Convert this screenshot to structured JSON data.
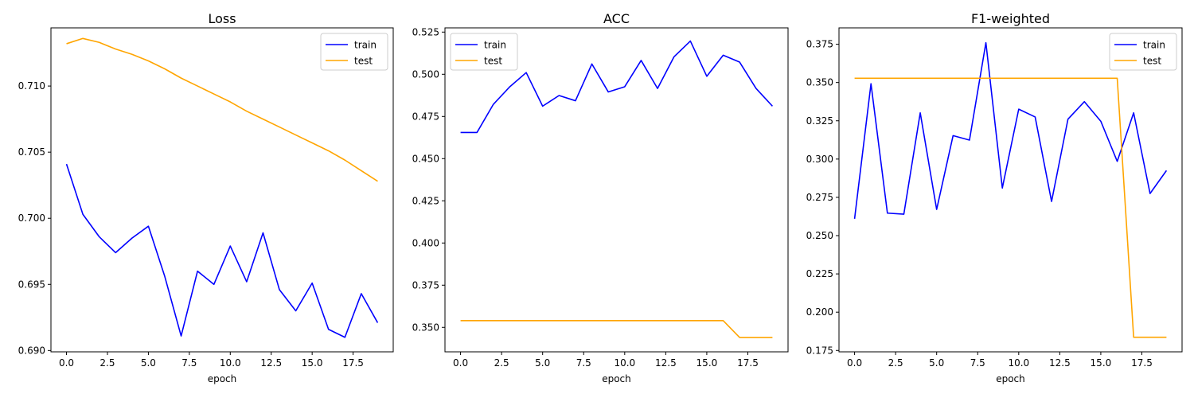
{
  "figure": {
    "background": "#ffffff"
  },
  "chart_data": [
    {
      "type": "line",
      "title": "Loss",
      "xlabel": "epoch",
      "ylabel": "",
      "x": [
        0,
        1,
        2,
        3,
        4,
        5,
        6,
        7,
        8,
        9,
        10,
        11,
        12,
        13,
        14,
        15,
        16,
        17,
        18,
        19
      ],
      "xlim": [
        -0.95,
        19.95
      ],
      "ylim": [
        0.6899,
        0.7144
      ],
      "xticks": [
        "0.0",
        "2.5",
        "5.0",
        "7.5",
        "10.0",
        "12.5",
        "15.0",
        "17.5"
      ],
      "xtick_values": [
        0,
        2.5,
        5,
        7.5,
        10,
        12.5,
        15,
        17.5
      ],
      "yticks": [
        "0.690",
        "0.695",
        "0.700",
        "0.705",
        "0.710"
      ],
      "ytick_values": [
        0.69,
        0.695,
        0.7,
        0.705,
        0.71
      ],
      "grid": false,
      "legend": "top-right",
      "series": [
        {
          "name": "train",
          "color": "#0000ff",
          "values": [
            0.7041,
            0.7003,
            0.6986,
            0.6974,
            0.6985,
            0.6994,
            0.6956,
            0.6911,
            0.696,
            0.695,
            0.6979,
            0.6952,
            0.6989,
            0.6946,
            0.693,
            0.6951,
            0.6916,
            0.691,
            0.6943,
            0.6921
          ]
        },
        {
          "name": "test",
          "color": "#ffa500",
          "values": [
            0.7132,
            0.7136,
            0.7133,
            0.7128,
            0.7124,
            0.7119,
            0.7113,
            0.7106,
            0.71,
            0.7094,
            0.7088,
            0.7081,
            0.7075,
            0.7069,
            0.7063,
            0.7057,
            0.7051,
            0.7044,
            0.7036,
            0.7028
          ]
        }
      ]
    },
    {
      "type": "line",
      "title": "ACC",
      "xlabel": "epoch",
      "ylabel": "",
      "x": [
        0,
        1,
        2,
        3,
        4,
        5,
        6,
        7,
        8,
        9,
        10,
        11,
        12,
        13,
        14,
        15,
        16,
        17,
        18,
        19
      ],
      "xlim": [
        -0.95,
        19.95
      ],
      "ylim": [
        0.3355,
        0.5275
      ],
      "xticks": [
        "0.0",
        "2.5",
        "5.0",
        "7.5",
        "10.0",
        "12.5",
        "15.0",
        "17.5"
      ],
      "xtick_values": [
        0,
        2.5,
        5,
        7.5,
        10,
        12.5,
        15,
        17.5
      ],
      "yticks": [
        "0.350",
        "0.375",
        "0.400",
        "0.425",
        "0.450",
        "0.475",
        "0.500",
        "0.525"
      ],
      "ytick_values": [
        0.35,
        0.375,
        0.4,
        0.425,
        0.45,
        0.475,
        0.5,
        0.525
      ],
      "grid": false,
      "legend": "top-left",
      "series": [
        {
          "name": "train",
          "color": "#0000ff",
          "values": [
            0.4655,
            0.4655,
            0.4822,
            0.4926,
            0.501,
            0.4811,
            0.4874,
            0.4843,
            0.5061,
            0.4895,
            0.4926,
            0.5082,
            0.4916,
            0.5103,
            0.5197,
            0.4988,
            0.5113,
            0.5072,
            0.4916,
            0.4811
          ]
        },
        {
          "name": "test",
          "color": "#ffa500",
          "values": [
            0.354,
            0.354,
            0.354,
            0.354,
            0.354,
            0.354,
            0.354,
            0.354,
            0.354,
            0.354,
            0.354,
            0.354,
            0.354,
            0.354,
            0.354,
            0.354,
            0.354,
            0.344,
            0.344,
            0.344
          ]
        }
      ]
    },
    {
      "type": "line",
      "title": "F1-weighted",
      "xlabel": "epoch",
      "ylabel": "",
      "x": [
        0,
        1,
        2,
        3,
        4,
        5,
        6,
        7,
        8,
        9,
        10,
        11,
        12,
        13,
        14,
        15,
        16,
        17,
        18,
        19
      ],
      "xlim": [
        -0.95,
        19.95
      ],
      "ylim": [
        0.1741,
        0.3857
      ],
      "xticks": [
        "0.0",
        "2.5",
        "5.0",
        "7.5",
        "10.0",
        "12.5",
        "15.0",
        "17.5"
      ],
      "xtick_values": [
        0,
        2.5,
        5,
        7.5,
        10,
        12.5,
        15,
        17.5
      ],
      "yticks": [
        "0.175",
        "0.200",
        "0.225",
        "0.250",
        "0.275",
        "0.300",
        "0.325",
        "0.350",
        "0.375"
      ],
      "ytick_values": [
        0.175,
        0.2,
        0.225,
        0.25,
        0.275,
        0.3,
        0.325,
        0.35,
        0.375
      ],
      "grid": false,
      "legend": "top-right",
      "series": [
        {
          "name": "train",
          "color": "#0000ff",
          "values": [
            0.261,
            0.3492,
            0.2647,
            0.264,
            0.3302,
            0.2671,
            0.3153,
            0.3124,
            0.376,
            0.2811,
            0.3326,
            0.3275,
            0.2723,
            0.3261,
            0.3375,
            0.3247,
            0.2985,
            0.3302,
            0.2775,
            0.2925
          ]
        },
        {
          "name": "test",
          "color": "#ffa500",
          "values": [
            0.3528,
            0.3528,
            0.3528,
            0.3528,
            0.3528,
            0.3528,
            0.3528,
            0.3528,
            0.3528,
            0.3528,
            0.3528,
            0.3528,
            0.3528,
            0.3528,
            0.3528,
            0.3528,
            0.3528,
            0.1836,
            0.1836,
            0.1836
          ]
        }
      ]
    }
  ]
}
